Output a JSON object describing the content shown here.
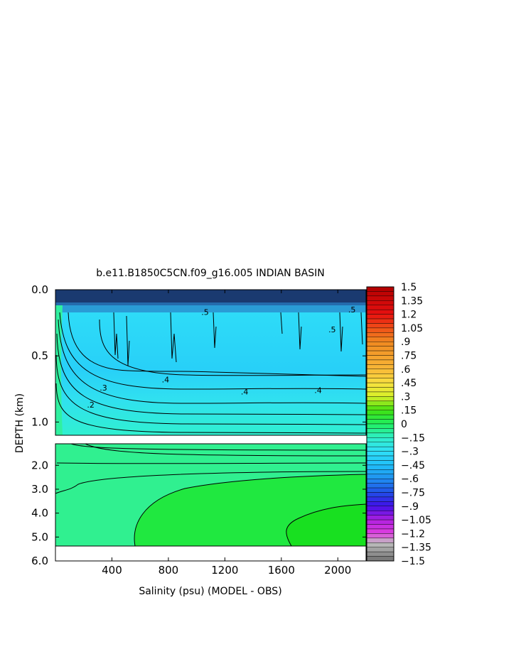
{
  "chart_data": {
    "type": "heatmap",
    "title": "b.e11.B1850C5CN.f09_g16.005 INDIAN BASIN",
    "xlabel": "Salinity (psu) (MODEL - OBS)",
    "ylabel": "DEPTH (km)",
    "x_range": [
      0,
      2200
    ],
    "x_ticks": [
      "400",
      "800",
      "1200",
      "1600",
      "2000"
    ],
    "x_tick_values": [
      400,
      800,
      1200,
      1600,
      2000
    ],
    "upper_panel": {
      "depth_range_km": [
        0.0,
        1.1
      ],
      "y_ticks": [
        "0.0",
        "0.5",
        "1.0"
      ],
      "y_tick_values": [
        0.0,
        0.5,
        1.0
      ]
    },
    "lower_panel": {
      "depth_range_km": [
        1.1,
        6.0
      ],
      "y_ticks": [
        "2.0",
        "3.0",
        "4.0",
        "5.0",
        "6.0"
      ],
      "y_tick_values": [
        2.0,
        3.0,
        4.0,
        5.0,
        6.0
      ]
    },
    "contour_labels": [
      {
        "text": ".5",
        "x": 1060,
        "depth": 0.17
      },
      {
        "text": ".5",
        "x": 1960,
        "depth": 0.3
      },
      {
        "text": ".5",
        "x": 2100,
        "depth": 0.15
      },
      {
        "text": ".4",
        "x": 780,
        "depth": 0.68
      },
      {
        "text": ".4",
        "x": 1340,
        "depth": 0.77
      },
      {
        "text": ".4",
        "x": 1860,
        "depth": 0.76
      },
      {
        "text": ".3",
        "x": 340,
        "depth": 0.74
      },
      {
        "text": ".2",
        "x": 250,
        "depth": 0.87
      }
    ],
    "colorbar": {
      "labels": [
        "1.5",
        "1.35",
        "1.2",
        "1.05",
        ".9",
        ".75",
        ".6",
        ".45",
        ".3",
        ".15",
        "0",
        "−.15",
        "−.3",
        "−.45",
        "−.6",
        "−.75",
        "−.9",
        "−1.05",
        "−1.2",
        "−1.35",
        "−1.5"
      ],
      "label_values": [
        1.5,
        1.35,
        1.2,
        1.05,
        0.9,
        0.75,
        0.6,
        0.45,
        0.3,
        0.15,
        0,
        -0.15,
        -0.3,
        -0.45,
        -0.6,
        -0.75,
        -0.9,
        -1.05,
        -1.2,
        -1.35,
        -1.5
      ],
      "stops": [
        {
          "value": 1.5,
          "color": "#b00000"
        },
        {
          "value": 1.2,
          "color": "#e81010"
        },
        {
          "value": 1.05,
          "color": "#f05018"
        },
        {
          "value": 0.9,
          "color": "#f08820"
        },
        {
          "value": 0.6,
          "color": "#f8b838"
        },
        {
          "value": 0.45,
          "color": "#f8e040"
        },
        {
          "value": 0.3,
          "color": "#d8f028"
        },
        {
          "value": 0.15,
          "color": "#40e010"
        },
        {
          "value": 0.0,
          "color": "#20f060"
        },
        {
          "value": -0.15,
          "color": "#30f0c8"
        },
        {
          "value": -0.3,
          "color": "#30e0f8"
        },
        {
          "value": -0.45,
          "color": "#20c0f8"
        },
        {
          "value": -0.6,
          "color": "#2090f0"
        },
        {
          "value": -0.75,
          "color": "#2050e8"
        },
        {
          "value": -0.9,
          "color": "#4010e8"
        },
        {
          "value": -1.05,
          "color": "#b020e0"
        },
        {
          "value": -1.2,
          "color": "#e040e0"
        },
        {
          "value": -1.3,
          "color": "#c0c0c0"
        },
        {
          "value": -1.5,
          "color": "#707070"
        }
      ],
      "lines": 60
    },
    "colors": {
      "upper_fill": "#30d8f8",
      "lower_fill": "#30f090",
      "deep_green": "#20e830",
      "contour": "#000000"
    }
  }
}
